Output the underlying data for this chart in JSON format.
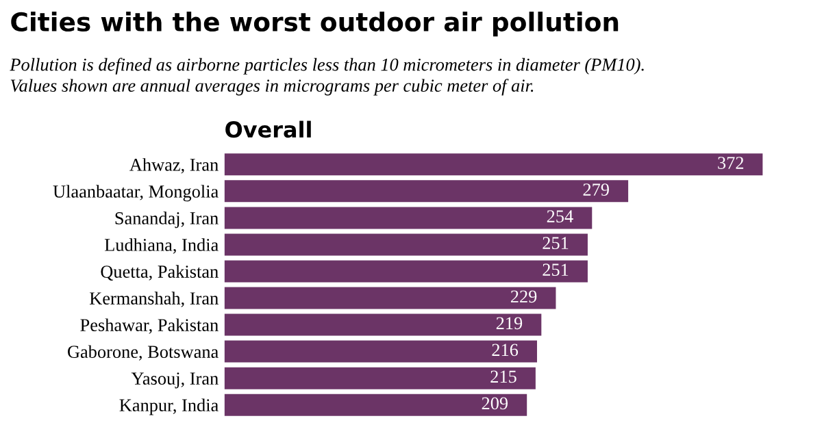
{
  "chart_data": {
    "type": "bar",
    "orientation": "horizontal",
    "title": "Cities with the worst outdoor air pollution",
    "subtitle": "Pollution is defined as airborne particles less than 10 micrometers in diameter (PM10).\nValues shown are annual averages in micrograms per cubic meter of air.",
    "annotations": [
      "Overall"
    ],
    "categories": [
      "Ahwaz, Iran",
      "Ulaanbaatar, Mongolia",
      "Sanandaj, Iran",
      "Ludhiana, India",
      "Quetta, Pakistan",
      "Kermanshah, Iran",
      "Peshawar, Pakistan",
      "Gaborone, Botswana",
      "Yasouj, Iran",
      "Kanpur, India"
    ],
    "values": [
      372,
      279,
      254,
      251,
      251,
      229,
      219,
      216,
      215,
      209
    ],
    "color": "#6b3466",
    "xlim": [
      0,
      372
    ],
    "tick_labels": "y",
    "grid": false,
    "legend": false,
    "data_labels": true
  }
}
